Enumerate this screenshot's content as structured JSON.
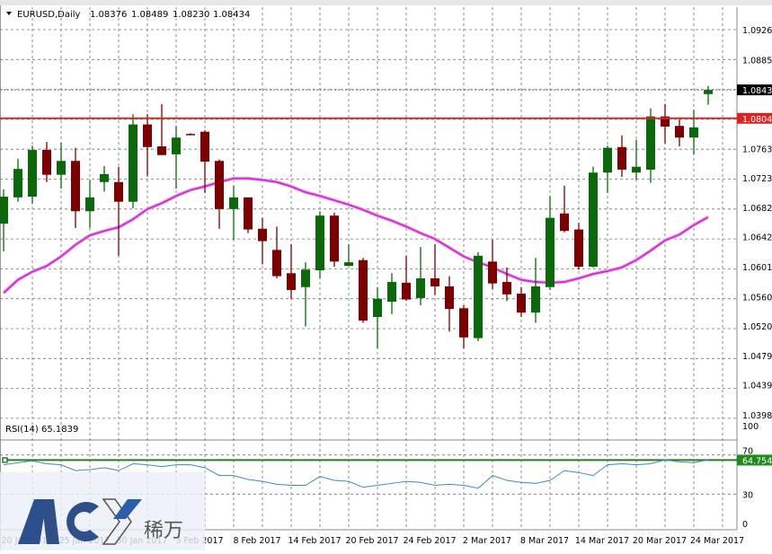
{
  "chart_data": {
    "type": "candlestick",
    "symbol_header": "EURUSD,Daily",
    "header_ohlc": [
      "1.08376",
      "1.08489",
      "1.08230",
      "1.08434"
    ],
    "price_ticks": [
      "1.09260",
      "1.08850",
      "1.07630",
      "1.07230",
      "1.06820",
      "1.06420",
      "1.06010",
      "1.05600",
      "1.05200",
      "1.04790",
      "1.04390",
      "1.03980"
    ],
    "ylim": [
      1.0365,
      1.0945
    ],
    "grid": true,
    "current_price_label": "1.08434",
    "horizontal_line_label": "1.08044",
    "x_labels": [
      "20 Jan 2017",
      "25 Jan 2017",
      "30 Jan 2017",
      "3 Feb 2017",
      "8 Feb 2017",
      "14 Feb 2017",
      "20 Feb 2017",
      "24 Feb 2017",
      "2 Mar 2017",
      "8 Mar 2017",
      "14 Mar 2017",
      "20 Mar 2017",
      "24 Mar 2017"
    ],
    "candles": [
      [
        1.066,
        1.0707,
        1.0622,
        1.0697
      ],
      [
        1.0696,
        1.0749,
        1.069,
        1.0735
      ],
      [
        1.0697,
        1.0767,
        1.0687,
        1.0761
      ],
      [
        1.0761,
        1.0772,
        1.0717,
        1.0727
      ],
      [
        1.0727,
        1.0771,
        1.0708,
        1.0746
      ],
      [
        1.0746,
        1.0764,
        1.0654,
        1.0677
      ],
      [
        1.0677,
        1.072,
        1.0654,
        1.0696
      ],
      [
        1.0717,
        1.0739,
        1.0704,
        1.0728
      ],
      [
        1.0717,
        1.0738,
        1.0616,
        1.069
      ],
      [
        1.069,
        1.081,
        1.0681,
        1.0796
      ],
      [
        1.0796,
        1.081,
        1.0725,
        1.0765
      ],
      [
        1.0766,
        1.0824,
        1.0754,
        1.0754
      ],
      [
        1.0755,
        1.0794,
        1.0708,
        1.0778
      ],
      [
        1.0783,
        1.0784,
        1.0782,
        1.0782
      ],
      [
        1.0786,
        1.0788,
        1.0702,
        1.0745
      ],
      [
        1.0746,
        1.0748,
        1.0653,
        1.068
      ],
      [
        1.068,
        1.0712,
        1.0638,
        1.0696
      ],
      [
        1.0696,
        1.0696,
        1.0647,
        1.0652
      ],
      [
        1.0653,
        1.0668,
        1.0604,
        1.0636
      ],
      [
        1.0624,
        1.0656,
        1.0585,
        1.0588
      ],
      [
        1.0592,
        1.0632,
        1.0557,
        1.0569
      ],
      [
        1.0573,
        1.0607,
        1.0519,
        1.0597
      ],
      [
        1.0596,
        1.0677,
        1.0585,
        1.0671
      ],
      [
        1.0671,
        1.0675,
        1.0601,
        1.0608
      ],
      [
        1.0602,
        1.0632,
        1.0602,
        1.0607
      ],
      [
        1.061,
        1.0613,
        1.0524,
        1.0527
      ],
      [
        1.0532,
        1.0573,
        1.0489,
        1.0557
      ],
      [
        1.0553,
        1.0592,
        1.0536,
        1.058
      ],
      [
        1.0579,
        1.0616,
        1.0554,
        1.0556
      ],
      [
        1.0558,
        1.0628,
        1.0548,
        1.0585
      ],
      [
        1.0585,
        1.0632,
        1.0562,
        1.0574
      ],
      [
        1.0574,
        1.0588,
        1.0512,
        1.0543
      ],
      [
        1.0544,
        1.0548,
        1.0489,
        1.0504
      ],
      [
        1.0503,
        1.0621,
        1.0499,
        1.0616
      ],
      [
        1.0608,
        1.0638,
        1.057,
        1.0578
      ],
      [
        1.058,
        1.06,
        1.0554,
        1.0563
      ],
      [
        1.0564,
        1.0573,
        1.0532,
        1.0538
      ],
      [
        1.0538,
        1.0613,
        1.0524,
        1.0574
      ],
      [
        1.0573,
        1.0698,
        1.0569,
        1.0668
      ],
      [
        1.0674,
        1.0712,
        1.0648,
        1.065
      ],
      [
        1.0652,
        1.0661,
        1.0597,
        1.0601
      ],
      [
        1.0601,
        1.0738,
        1.06,
        1.073
      ],
      [
        1.073,
        1.0767,
        1.0702,
        1.0764
      ],
      [
        1.0765,
        1.0781,
        1.0724,
        1.0734
      ],
      [
        1.073,
        1.0775,
        1.072,
        1.0738
      ],
      [
        1.0734,
        1.0818,
        1.0716,
        1.0807
      ],
      [
        1.0807,
        1.0824,
        1.077,
        1.0793
      ],
      [
        1.0794,
        1.0803,
        1.0766,
        1.0778
      ],
      [
        1.0778,
        1.0816,
        1.0755,
        1.0792
      ],
      [
        1.08376,
        1.08489,
        1.0823,
        1.08434
      ]
    ],
    "candle_format": [
      "open",
      "high",
      "low",
      "close"
    ],
    "moving_average": [
      1.0565,
      1.0583,
      1.0594,
      1.0602,
      1.0615,
      1.0631,
      1.0644,
      1.065,
      1.0655,
      1.0666,
      1.068,
      1.0688,
      1.0698,
      1.0706,
      1.0711,
      1.0717,
      1.0722,
      1.0722,
      1.072,
      1.0717,
      1.0711,
      1.0703,
      1.0698,
      1.0692,
      1.0686,
      1.0679,
      1.0671,
      1.0664,
      1.0656,
      1.0647,
      1.0639,
      1.0627,
      1.0615,
      1.0607,
      1.06,
      1.0591,
      1.0583,
      1.058,
      1.0579,
      1.058,
      1.0585,
      1.0591,
      1.0595,
      1.06,
      1.061,
      1.0623,
      1.0637,
      1.0645,
      1.0658,
      1.0669
    ],
    "colors": {
      "bull": "#0a680a",
      "bear": "#7d0000",
      "ma": "#cc33cc",
      "hline": "#d42a2a",
      "price_line": "#6b6ba8",
      "rsi": "#3d8db3",
      "rsi_level": "#2a7a2a"
    },
    "rsi": {
      "label": "RSI(14) 65.1839",
      "ticks": [
        "100",
        "70",
        "30",
        "0"
      ],
      "ylim": [
        0,
        100
      ],
      "level_label": "64.7541",
      "level": 64.7541,
      "values": [
        60,
        62,
        64,
        61,
        60,
        54,
        55,
        57,
        54,
        61,
        60,
        58,
        60,
        60,
        57,
        49,
        49,
        45,
        43,
        40,
        39,
        39,
        48,
        44,
        43,
        37,
        39,
        41,
        43,
        42,
        39,
        40,
        39,
        36,
        49,
        44,
        42,
        41,
        44,
        54,
        52,
        49,
        60,
        61,
        60,
        61,
        65,
        63,
        62,
        65.18
      ]
    }
  },
  "watermark": {
    "brand": "ACY",
    "chinese": "稀万"
  }
}
